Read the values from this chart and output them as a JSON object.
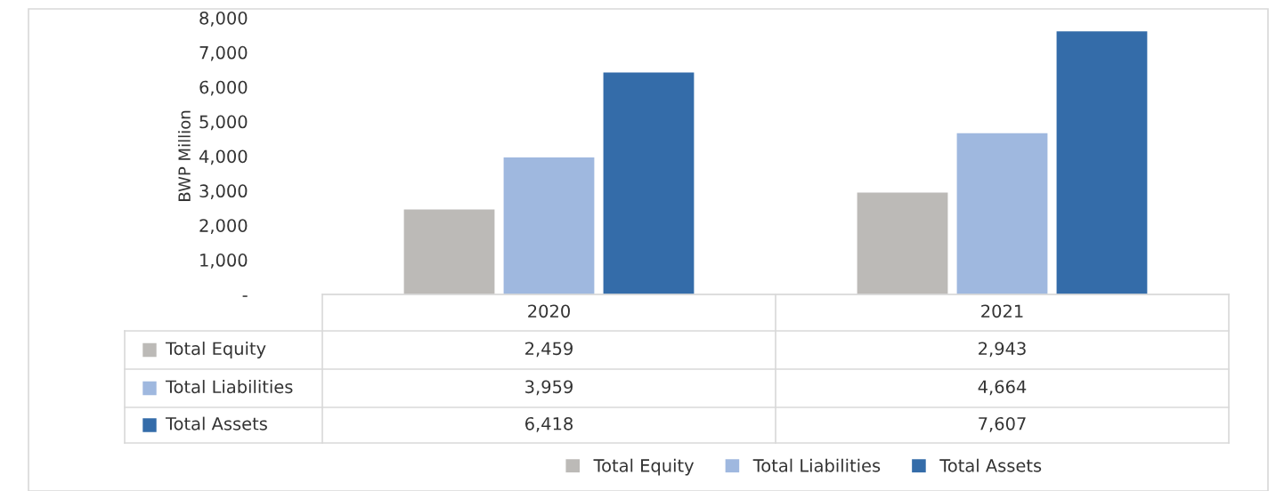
{
  "chart_data": {
    "type": "bar",
    "ylabel": "BWP Million",
    "categories": [
      "2020",
      "2021"
    ],
    "series": [
      {
        "name": "Total Equity",
        "color": "#bcbab7",
        "values": [
          2459,
          2943
        ],
        "value_labels": [
          "2,459",
          "2,943"
        ]
      },
      {
        "name": "Total Liabilities",
        "color": "#9fb8df",
        "values": [
          3959,
          4664
        ],
        "value_labels": [
          "3,959",
          "4,664"
        ]
      },
      {
        "name": "Total Assets",
        "color": "#346ca9",
        "values": [
          6418,
          7607
        ],
        "value_labels": [
          "6,418",
          "7,607"
        ]
      }
    ],
    "ylim": [
      0,
      8000
    ],
    "yticks": [
      {
        "value": 0,
        "label": "-"
      },
      {
        "value": 1000,
        "label": "1,000"
      },
      {
        "value": 2000,
        "label": "2,000"
      },
      {
        "value": 3000,
        "label": "3,000"
      },
      {
        "value": 4000,
        "label": "4,000"
      },
      {
        "value": 5000,
        "label": "5,000"
      },
      {
        "value": 6000,
        "label": "6,000"
      },
      {
        "value": 7000,
        "label": "7,000"
      },
      {
        "value": 8000,
        "label": "8,000"
      }
    ],
    "grid": false,
    "legend": "bottom"
  }
}
